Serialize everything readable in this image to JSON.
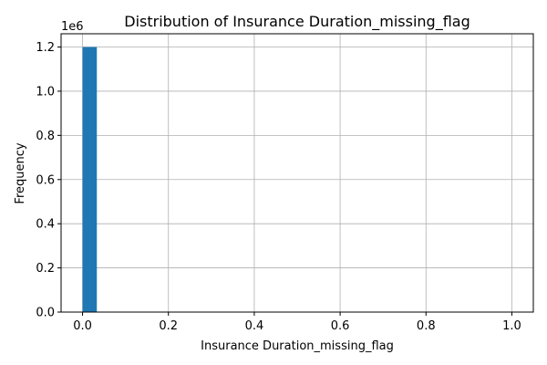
{
  "chart_data": {
    "type": "bar",
    "title": "Distribution of Insurance Duration_missing_flag",
    "xlabel": "Insurance Duration_missing_flag",
    "ylabel": "Frequency",
    "y_offset_label": "1e6",
    "xlim": [
      -0.05,
      1.05
    ],
    "ylim": [
      0,
      1.26
    ],
    "x_ticks": [
      0.0,
      0.2,
      0.4,
      0.6,
      0.8,
      1.0
    ],
    "x_tick_labels": [
      "0.0",
      "0.2",
      "0.4",
      "0.6",
      "0.8",
      "1.0"
    ],
    "y_ticks": [
      0.0,
      0.2,
      0.4,
      0.6,
      0.8,
      1.0,
      1.2
    ],
    "y_tick_labels": [
      "0.0",
      "0.2",
      "0.4",
      "0.6",
      "0.8",
      "1.0",
      "1.2"
    ],
    "bins": [
      {
        "x0": 0.0,
        "x1": 0.0333,
        "value": 1.2
      }
    ],
    "grid": true,
    "colors": {
      "bar": "#1f77b4",
      "grid": "#b0b0b0",
      "axis": "#000000"
    }
  }
}
